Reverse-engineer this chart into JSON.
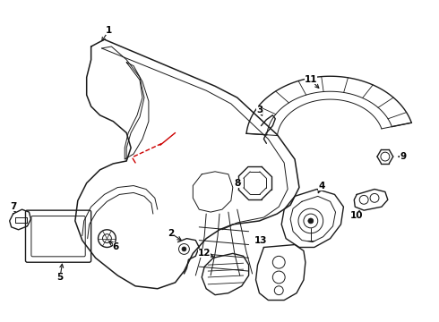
{
  "background_color": "#ffffff",
  "line_color": "#1a1a1a",
  "red_line_color": "#cc0000",
  "label_color": "#000000",
  "fig_width": 4.9,
  "fig_height": 3.6,
  "dpi": 100
}
